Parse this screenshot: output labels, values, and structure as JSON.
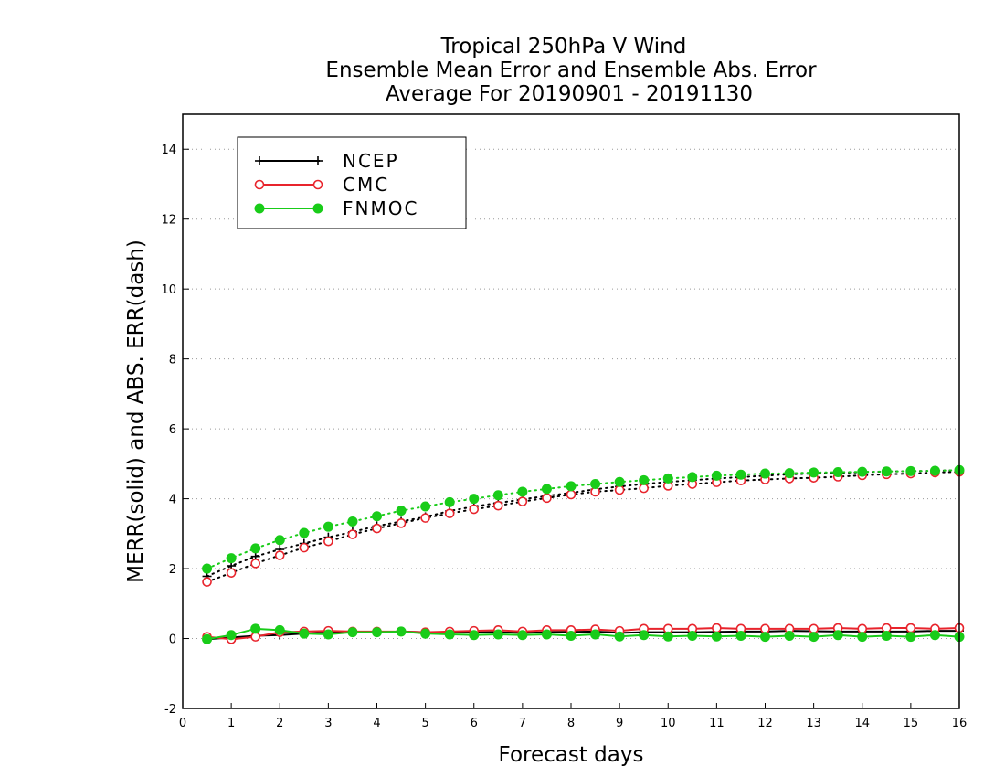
{
  "chart_data": {
    "type": "line",
    "title": [
      "Tropical 250hPa V Wind",
      "Ensemble Mean Error and Ensemble Abs. Error",
      "Average For 20190901 - 20191130"
    ],
    "xlabel": "Forecast days",
    "ylabel": "MERR(solid) and ABS. ERR(dash)",
    "xlim": [
      0,
      16
    ],
    "ylim": [
      -2,
      15
    ],
    "xticks": [
      0,
      1,
      2,
      3,
      4,
      5,
      6,
      7,
      8,
      9,
      10,
      11,
      12,
      13,
      14,
      15,
      16
    ],
    "yticks": [
      -2,
      0,
      2,
      4,
      6,
      8,
      10,
      12,
      14
    ],
    "grid": "horizontal dotted",
    "legend_position": "top-left",
    "x": [
      0.5,
      1,
      1.5,
      2,
      2.5,
      3,
      3.5,
      4,
      4.5,
      5,
      5.5,
      6,
      6.5,
      7,
      7.5,
      8,
      8.5,
      9,
      9.5,
      10,
      10.5,
      11,
      11.5,
      12,
      12.5,
      13,
      13.5,
      14,
      14.5,
      15,
      15.5,
      16
    ],
    "series": [
      {
        "name": "NCEP",
        "color": "#000000",
        "marker": "plus",
        "mean_error": [
          -0.02,
          0.03,
          0.08,
          0.1,
          0.14,
          0.17,
          0.18,
          0.18,
          0.2,
          0.18,
          0.17,
          0.18,
          0.18,
          0.16,
          0.18,
          0.19,
          0.2,
          0.16,
          0.18,
          0.18,
          0.18,
          0.19,
          0.2,
          0.2,
          0.22,
          0.21,
          0.2,
          0.2,
          0.2,
          0.2,
          0.22,
          0.22
        ],
        "abs_error": [
          1.78,
          2.08,
          2.35,
          2.55,
          2.72,
          2.9,
          3.05,
          3.22,
          3.35,
          3.48,
          3.65,
          3.78,
          3.88,
          3.98,
          4.08,
          4.17,
          4.27,
          4.35,
          4.42,
          4.48,
          4.53,
          4.58,
          4.62,
          4.66,
          4.7,
          4.72,
          4.74,
          4.76,
          4.78,
          4.79,
          4.8,
          4.82
        ]
      },
      {
        "name": "CMC",
        "color": "#e8242c",
        "marker": "open-circle",
        "mean_error": [
          0.05,
          -0.02,
          0.05,
          0.18,
          0.2,
          0.22,
          0.2,
          0.2,
          0.2,
          0.18,
          0.2,
          0.22,
          0.24,
          0.2,
          0.24,
          0.24,
          0.26,
          0.22,
          0.28,
          0.28,
          0.28,
          0.3,
          0.28,
          0.28,
          0.28,
          0.28,
          0.3,
          0.28,
          0.3,
          0.3,
          0.28,
          0.3
        ],
        "abs_error": [
          1.62,
          1.88,
          2.15,
          2.38,
          2.6,
          2.78,
          2.98,
          3.15,
          3.3,
          3.45,
          3.58,
          3.7,
          3.8,
          3.92,
          4.02,
          4.12,
          4.2,
          4.25,
          4.3,
          4.37,
          4.42,
          4.47,
          4.52,
          4.55,
          4.58,
          4.6,
          4.63,
          4.67,
          4.7,
          4.72,
          4.75,
          4.77
        ]
      },
      {
        "name": "FNMOC",
        "color": "#19cc19",
        "marker": "filled-circle",
        "mean_error": [
          -0.02,
          0.1,
          0.28,
          0.24,
          0.14,
          0.12,
          0.18,
          0.18,
          0.2,
          0.14,
          0.12,
          0.1,
          0.12,
          0.1,
          0.12,
          0.08,
          0.12,
          0.06,
          0.1,
          0.06,
          0.08,
          0.06,
          0.08,
          0.05,
          0.08,
          0.05,
          0.1,
          0.05,
          0.08,
          0.05,
          0.1,
          0.05
        ],
        "abs_error": [
          2.0,
          2.3,
          2.58,
          2.82,
          3.02,
          3.2,
          3.35,
          3.5,
          3.66,
          3.78,
          3.9,
          4.0,
          4.1,
          4.2,
          4.28,
          4.36,
          4.42,
          4.48,
          4.53,
          4.58,
          4.62,
          4.66,
          4.69,
          4.72,
          4.73,
          4.75,
          4.76,
          4.77,
          4.78,
          4.79,
          4.8,
          4.82
        ]
      }
    ]
  }
}
